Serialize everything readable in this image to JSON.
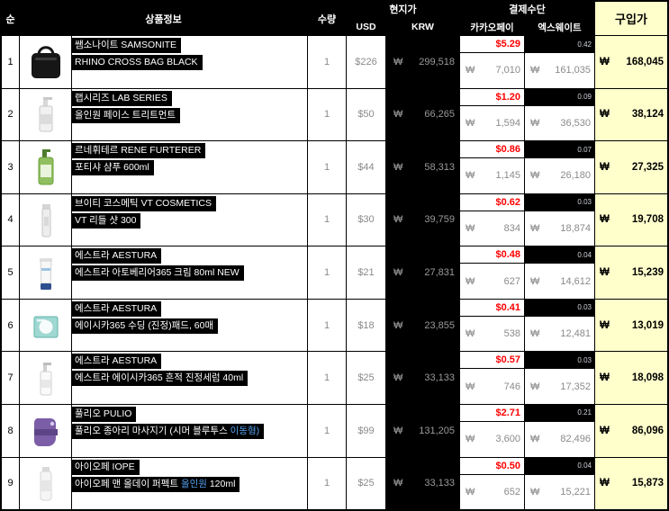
{
  "header": {
    "col_no": "순",
    "col_product_info": "상품정보",
    "col_qty": "수량",
    "col_local_price": "현지가",
    "col_usd": "USD",
    "col_krw": "KRW",
    "col_payment": "결제수단",
    "col_pay1": "카카오페이",
    "col_pay2": "엑스웨이트",
    "col_purchase": "구입가"
  },
  "colors": {
    "header_yellow": "#FFFFCC",
    "fee_red": "#FF0000",
    "highlight_blue": "#55A0F0",
    "grid_black": "#000000"
  },
  "rows": [
    {
      "no": "1",
      "image": "black-crossbody-bag",
      "brand": "쌤소나이트 SAMSONITE",
      "name": "RHINO CROSS BAG BLACK",
      "name_blue": "",
      "name_end": "",
      "qty": "1",
      "usd": "$226",
      "krw": "299,518",
      "pay1_usd": "$5.29",
      "pay1_krw": "7,010",
      "pay2_rate": "0.42",
      "pay2_krw": "161,035",
      "purchase": "168,045"
    },
    {
      "no": "2",
      "image": "white-pump-bottle",
      "brand": "랩시리즈 LAB SERIES",
      "name": "올인원 페이스 트리트먼트",
      "name_blue": "",
      "name_end": "",
      "qty": "1",
      "usd": "$50",
      "krw": "66,265",
      "pay1_usd": "$1.20",
      "pay1_krw": "1,594",
      "pay2_rate": "0.09",
      "pay2_krw": "36,530",
      "purchase": "38,124"
    },
    {
      "no": "3",
      "image": "green-shampoo-bottle",
      "brand": "르네휘테르 RENE FURTERER",
      "name": "포티샤 샴푸 600ml",
      "name_blue": "",
      "name_end": "",
      "qty": "1",
      "usd": "$44",
      "krw": "58,313",
      "pay1_usd": "$0.86",
      "pay1_krw": "1,145",
      "pay2_rate": "0.07",
      "pay2_krw": "26,180",
      "purchase": "27,325"
    },
    {
      "no": "4",
      "image": "slim-ampoule-bottle",
      "brand": "브이티 코스메틱 VT COSMETICS",
      "name": "VT 리들 샷 300",
      "name_blue": "",
      "name_end": "",
      "qty": "1",
      "usd": "$30",
      "krw": "39,759",
      "pay1_usd": "$0.62",
      "pay1_krw": "834",
      "pay2_rate": "0.03",
      "pay2_krw": "18,874",
      "purchase": "19,708"
    },
    {
      "no": "5",
      "image": "white-cream-tube",
      "brand": "에스트라 AESTURA",
      "name": "에스트라 아토베리어365 크림 80ml NEW",
      "name_blue": "",
      "name_end": "",
      "qty": "1",
      "usd": "$21",
      "krw": "27,831",
      "pay1_usd": "$0.48",
      "pay1_krw": "627",
      "pay2_rate": "0.04",
      "pay2_krw": "14,612",
      "purchase": "15,239"
    },
    {
      "no": "6",
      "image": "teal-pad-box",
      "brand": "에스트라 AESTURA",
      "name": "에이시카365 수딩 (진정)패드, 60매",
      "name_blue": "",
      "name_end": "",
      "qty": "1",
      "usd": "$18",
      "krw": "23,855",
      "pay1_usd": "$0.41",
      "pay1_krw": "538",
      "pay2_rate": "0.03",
      "pay2_krw": "12,481",
      "purchase": "13,019"
    },
    {
      "no": "7",
      "image": "white-serum-bottle",
      "brand": "에스트라 AESTURA",
      "name": "에스트라 에이시카365 흔적 진정세럼 40ml",
      "name_blue": "",
      "name_end": "",
      "qty": "1",
      "usd": "$25",
      "krw": "33,133",
      "pay1_usd": "$0.57",
      "pay1_krw": "746",
      "pay2_rate": "0.03",
      "pay2_krw": "17,352",
      "purchase": "18,098"
    },
    {
      "no": "8",
      "image": "purple-calf-massager",
      "brand": "풀리오 PULIO",
      "name": "풀리오 종아리 마사지기 (시머 블루투스 ",
      "name_blue": "이동형)",
      "name_end": "",
      "qty": "1",
      "usd": "$99",
      "krw": "131,205",
      "pay1_usd": "$2.71",
      "pay1_krw": "3,600",
      "pay2_rate": "0.21",
      "pay2_krw": "82,496",
      "purchase": "86,096"
    },
    {
      "no": "9",
      "image": "white-lotion-bottle",
      "brand": "아이오페 IOPE",
      "name": "아이오페 맨 올데이 퍼펙트 ",
      "name_blue": "올인원",
      "name_end": " 120ml",
      "qty": "1",
      "usd": "$25",
      "krw": "33,133",
      "pay1_usd": "$0.50",
      "pay1_krw": "652",
      "pay2_rate": "0.04",
      "pay2_krw": "15,221",
      "purchase": "15,873"
    }
  ]
}
